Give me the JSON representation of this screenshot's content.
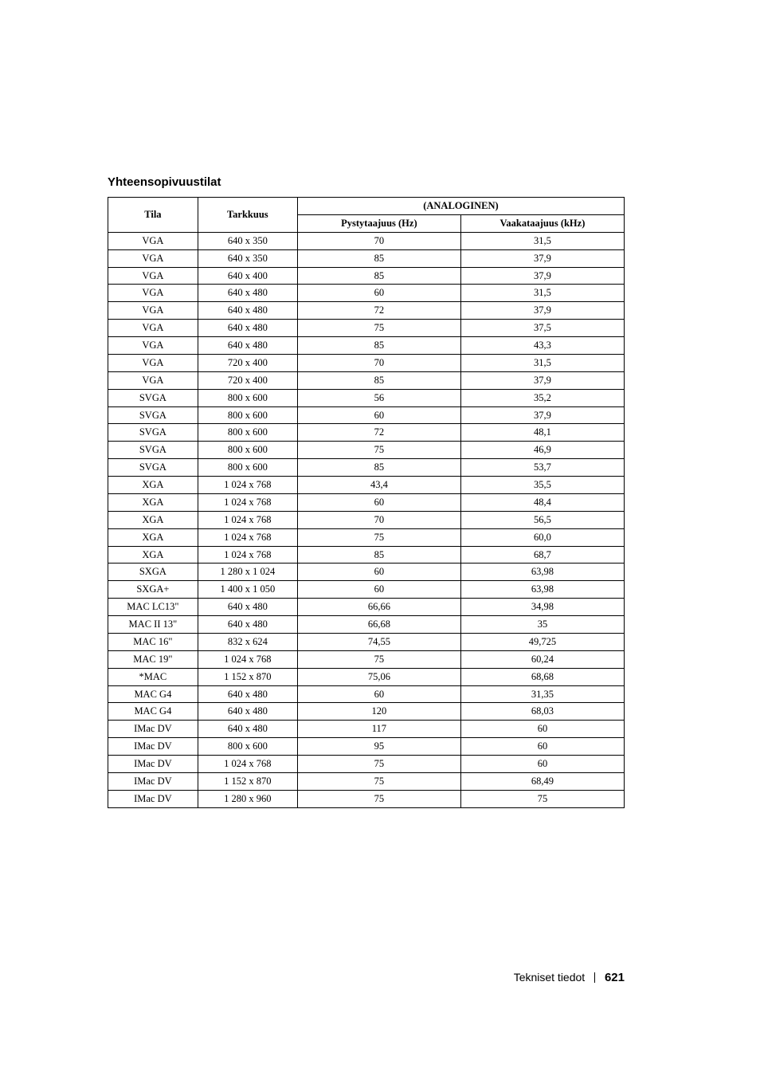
{
  "section_title": "Yhteensopivuustilat",
  "headers": {
    "tila": "Tila",
    "tarkkuus": "Tarkkuus",
    "analoginen": "(ANALOGINEN)",
    "pysty": "Pystytaajuus (Hz)",
    "vaaka": "Vaakataajuus (kHz)"
  },
  "rows": [
    {
      "tila": "VGA",
      "tark": "640 x 350",
      "pys": "70",
      "vaa": "31,5"
    },
    {
      "tila": "VGA",
      "tark": "640 x 350",
      "pys": "85",
      "vaa": "37,9"
    },
    {
      "tila": "VGA",
      "tark": "640 x 400",
      "pys": "85",
      "vaa": "37,9"
    },
    {
      "tila": "VGA",
      "tark": "640 x 480",
      "pys": "60",
      "vaa": "31,5"
    },
    {
      "tila": "VGA",
      "tark": "640 x 480",
      "pys": "72",
      "vaa": "37,9"
    },
    {
      "tila": "VGA",
      "tark": "640 x 480",
      "pys": "75",
      "vaa": "37,5"
    },
    {
      "tila": "VGA",
      "tark": "640 x 480",
      "pys": "85",
      "vaa": "43,3"
    },
    {
      "tila": "VGA",
      "tark": "720 x 400",
      "pys": "70",
      "vaa": "31,5"
    },
    {
      "tila": "VGA",
      "tark": "720 x 400",
      "pys": "85",
      "vaa": "37,9"
    },
    {
      "tila": "SVGA",
      "tark": "800 x 600",
      "pys": "56",
      "vaa": "35,2"
    },
    {
      "tila": "SVGA",
      "tark": "800 x 600",
      "pys": "60",
      "vaa": "37,9"
    },
    {
      "tila": "SVGA",
      "tark": "800 x 600",
      "pys": "72",
      "vaa": "48,1"
    },
    {
      "tila": "SVGA",
      "tark": "800 x 600",
      "pys": "75",
      "vaa": "46,9"
    },
    {
      "tila": "SVGA",
      "tark": "800 x 600",
      "pys": "85",
      "vaa": "53,7"
    },
    {
      "tila": "XGA",
      "tark": "1 024 x 768",
      "pys": "43,4",
      "vaa": "35,5"
    },
    {
      "tila": "XGA",
      "tark": "1 024 x 768",
      "pys": "60",
      "vaa": "48,4"
    },
    {
      "tila": "XGA",
      "tark": "1 024 x 768",
      "pys": "70",
      "vaa": "56,5"
    },
    {
      "tila": "XGA",
      "tark": "1 024 x 768",
      "pys": "75",
      "vaa": "60,0"
    },
    {
      "tila": "XGA",
      "tark": "1 024 x 768",
      "pys": "85",
      "vaa": "68,7"
    },
    {
      "tila": "SXGA",
      "tark": "1 280 x 1 024",
      "pys": "60",
      "vaa": "63,98"
    },
    {
      "tila": "SXGA+",
      "tark": "1 400 x 1 050",
      "pys": "60",
      "vaa": "63,98"
    },
    {
      "tila": "MAC LC13\"",
      "tark": "640 x 480",
      "pys": "66,66",
      "vaa": "34,98"
    },
    {
      "tila": "MAC II 13\"",
      "tark": "640 x 480",
      "pys": "66,68",
      "vaa": "35"
    },
    {
      "tila": "MAC 16\"",
      "tark": "832 x 624",
      "pys": "74,55",
      "vaa": "49,725"
    },
    {
      "tila": "MAC 19\"",
      "tark": "1 024 x 768",
      "pys": "75",
      "vaa": "60,24"
    },
    {
      "tila": "*MAC",
      "tark": "1 152 x 870",
      "pys": "75,06",
      "vaa": "68,68"
    },
    {
      "tila": "MAC G4",
      "tark": "640 x 480",
      "pys": "60",
      "vaa": "31,35"
    },
    {
      "tila": "MAC G4",
      "tark": "640 x 480",
      "pys": "120",
      "vaa": "68,03"
    },
    {
      "tila": "IMac DV",
      "tark": "640 x 480",
      "pys": "117",
      "vaa": "60"
    },
    {
      "tila": "IMac DV",
      "tark": "800 x 600",
      "pys": "95",
      "vaa": "60"
    },
    {
      "tila": "IMac DV",
      "tark": "1 024 x 768",
      "pys": "75",
      "vaa": "60"
    },
    {
      "tila": "IMac DV",
      "tark": "1 152 x 870",
      "pys": "75",
      "vaa": "68,49"
    },
    {
      "tila": "IMac DV",
      "tark": "1 280 x 960",
      "pys": "75",
      "vaa": "75"
    }
  ],
  "footer": {
    "label": "Tekniset tiedot",
    "page": "621"
  }
}
